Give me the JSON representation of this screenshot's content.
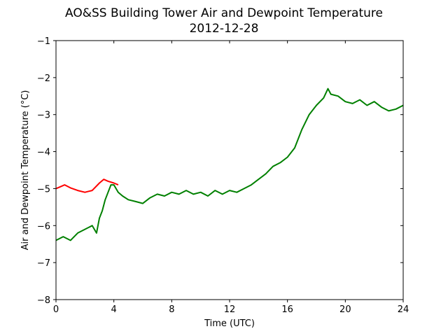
{
  "chart_data": {
    "type": "line",
    "title": "AO&SS Building Tower Air and Dewpoint Temperature",
    "subtitle": "2012-12-28",
    "xlabel": "Time (UTC)",
    "ylabel": "Air and Dewpoint Temperature (°C)",
    "xlim": [
      0,
      24
    ],
    "ylim": [
      -8,
      -1
    ],
    "xticks": [
      0,
      4,
      8,
      12,
      16,
      20,
      24
    ],
    "yticks": [
      -8,
      -7,
      -6,
      -5,
      -4,
      -3,
      -2,
      -1
    ],
    "xtick_labels": [
      "0",
      "4",
      "8",
      "12",
      "16",
      "20",
      "24"
    ],
    "ytick_labels": [
      "−8",
      "−7",
      "−6",
      "−5",
      "−4",
      "−3",
      "−2",
      "−1"
    ],
    "grid": false,
    "colors": {
      "air": "#ff0000",
      "dewpoint": "#008000"
    },
    "series": [
      {
        "color": "#ff0000",
        "x": [
          0,
          0.3,
          0.6,
          1.0,
          1.5,
          2.0,
          2.5,
          3.0,
          3.3,
          3.6,
          4.0,
          4.3
        ],
        "y": [
          -5.0,
          -4.95,
          -4.9,
          -4.98,
          -5.05,
          -5.1,
          -5.05,
          -4.85,
          -4.75,
          -4.8,
          -4.85,
          -4.9
        ]
      },
      {
        "color": "#008000",
        "x": [
          0,
          0.5,
          1.0,
          1.5,
          2.0,
          2.5,
          2.8,
          3.0,
          3.2,
          3.4,
          3.6,
          3.8,
          4.0,
          4.3,
          4.6,
          5.0,
          5.5,
          6.0,
          6.5,
          7.0,
          7.5,
          8.0,
          8.5,
          9.0,
          9.5,
          10.0,
          10.5,
          11.0,
          11.5,
          12.0,
          12.5,
          13.0,
          13.5,
          14.0,
          14.5,
          15.0,
          15.5,
          16.0,
          16.5,
          17.0,
          17.5,
          18.0,
          18.5,
          18.8,
          19.0,
          19.5,
          20.0,
          20.5,
          21.0,
          21.5,
          22.0,
          22.5,
          23.0,
          23.5,
          24.0
        ],
        "y": [
          -6.4,
          -6.3,
          -6.4,
          -6.2,
          -6.1,
          -6.0,
          -6.2,
          -5.8,
          -5.6,
          -5.3,
          -5.1,
          -4.9,
          -4.9,
          -5.1,
          -5.2,
          -5.3,
          -5.35,
          -5.4,
          -5.25,
          -5.15,
          -5.2,
          -5.1,
          -5.15,
          -5.05,
          -5.15,
          -5.1,
          -5.2,
          -5.05,
          -5.15,
          -5.05,
          -5.1,
          -5.0,
          -4.9,
          -4.75,
          -4.6,
          -4.4,
          -4.3,
          -4.15,
          -3.9,
          -3.4,
          -3.0,
          -2.75,
          -2.55,
          -2.3,
          -2.45,
          -2.5,
          -2.65,
          -2.7,
          -2.6,
          -2.75,
          -2.65,
          -2.8,
          -2.9,
          -2.85,
          -2.75
        ]
      }
    ]
  }
}
